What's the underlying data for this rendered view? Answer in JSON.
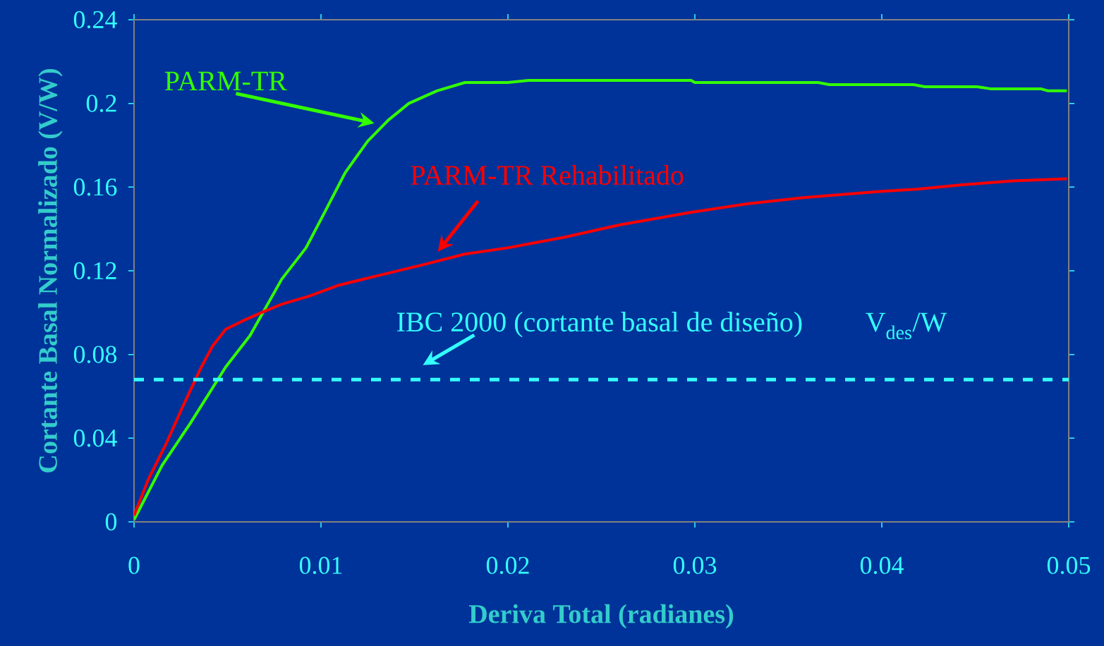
{
  "chart_data": {
    "type": "line",
    "xlabel": "Deriva Total (radianes)",
    "ylabel": "Cortante Basal Normalizado (V/W)",
    "xlim": [
      0,
      0.05
    ],
    "ylim": [
      0,
      0.24
    ],
    "xticks": [
      0,
      0.01,
      0.02,
      0.03,
      0.04,
      0.05
    ],
    "yticks": [
      0,
      0.04,
      0.08,
      0.12,
      0.16,
      0.2,
      0.24
    ],
    "grid": false,
    "line_style": "solid",
    "series": [
      {
        "color": "#33ff00",
        "x": [
          0,
          0.0015,
          0.003,
          0.0049,
          0.0062,
          0.0079,
          0.0092,
          0.0102,
          0.0113,
          0.0125,
          0.0136,
          0.0147,
          0.0162,
          0.0177,
          0.02,
          0.0211,
          0.0298,
          0.03,
          0.0366,
          0.0372,
          0.0417,
          0.0423,
          0.0451,
          0.0458,
          0.0485,
          0.0489,
          0.0499
        ],
        "values": [
          0.001,
          0.027,
          0.047,
          0.074,
          0.089,
          0.116,
          0.131,
          0.148,
          0.167,
          0.182,
          0.192,
          0.2,
          0.206,
          0.21,
          0.21,
          0.211,
          0.211,
          0.21,
          0.21,
          0.209,
          0.209,
          0.208,
          0.208,
          0.207,
          0.207,
          0.206,
          0.206
        ]
      },
      {
        "color": "#ff0000",
        "x": [
          0,
          0.00075,
          0.0017,
          0.0026,
          0.0036,
          0.0042,
          0.0049,
          0.0058,
          0.0068,
          0.0079,
          0.0094,
          0.0109,
          0.0132,
          0.0155,
          0.0177,
          0.02,
          0.023,
          0.026,
          0.0298,
          0.0328,
          0.0358,
          0.04,
          0.0419,
          0.0442,
          0.047,
          0.0499
        ],
        "values": [
          0.003,
          0.02,
          0.037,
          0.055,
          0.074,
          0.084,
          0.092,
          0.096,
          0.1,
          0.104,
          0.108,
          0.113,
          0.118,
          0.123,
          0.128,
          0.131,
          0.136,
          0.142,
          0.148,
          0.152,
          0.155,
          0.158,
          0.159,
          0.161,
          0.163,
          0.164
        ]
      }
    ],
    "ref_lines": [
      {
        "axis": "y",
        "value": 0.068,
        "label": "V$_{des}$/W",
        "color": "#33ffff",
        "line_style": "dashed"
      }
    ],
    "annotations": [
      "PARM-TR",
      "PARM-TR Rehabilitado",
      "IBC 2000 (cortante basal de diseño)"
    ]
  }
}
